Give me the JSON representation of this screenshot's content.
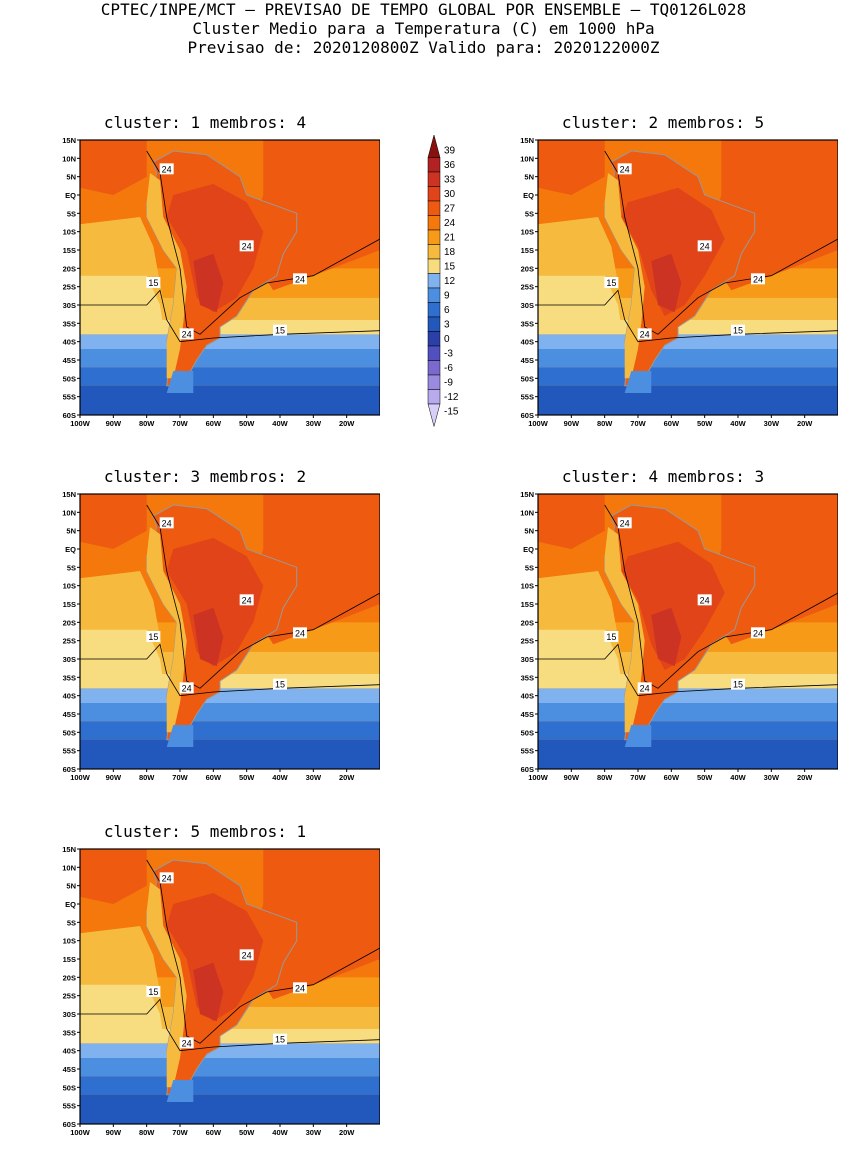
{
  "header": {
    "line1": "CPTEC/INPE/MCT – PREVISAO DE TEMPO GLOBAL POR ENSEMBLE – TQ0126L028",
    "line2": "Cluster Medio para a Temperatura (C) em 1000 hPa",
    "line3": "Previsao de: 2020120800Z   Valido para: 2020122000Z"
  },
  "lat_labels": [
    "15N",
    "10N",
    "5N",
    "EQ",
    "5S",
    "10S",
    "15S",
    "20S",
    "25S",
    "30S",
    "35S",
    "40S",
    "45S",
    "50S",
    "55S",
    "60S"
  ],
  "lon_labels": [
    "100W",
    "90W",
    "80W",
    "70W",
    "60W",
    "50W",
    "40W",
    "30W",
    "20W"
  ],
  "colorbar": {
    "labels": [
      "39",
      "36",
      "33",
      "30",
      "27",
      "24",
      "21",
      "18",
      "15",
      "12",
      "9",
      "6",
      "3",
      "0",
      "-3",
      "-6",
      "-9",
      "-12",
      "-15"
    ],
    "colors": [
      "#8a0f0f",
      "#b22222",
      "#cc3322",
      "#e04418",
      "#ee5a10",
      "#f4780c",
      "#f79a18",
      "#f6bb3e",
      "#f8dc80",
      "#7fb2ee",
      "#4c8fe0",
      "#2f6fd0",
      "#2257bb",
      "#2a3fa8",
      "#5050c0",
      "#7a6ad0",
      "#9a8ae0",
      "#b8aaec",
      "#d8cef8"
    ]
  },
  "contour_labels": {
    "warm": "24",
    "cool": "15"
  },
  "panels": [
    {
      "title": "cluster: 1   membros: 4"
    },
    {
      "title": "cluster: 2   membros: 5"
    },
    {
      "title": "cluster: 3   membros: 2"
    },
    {
      "title": "cluster: 4   membros: 3"
    },
    {
      "title": "cluster: 5   membros: 1"
    }
  ]
}
